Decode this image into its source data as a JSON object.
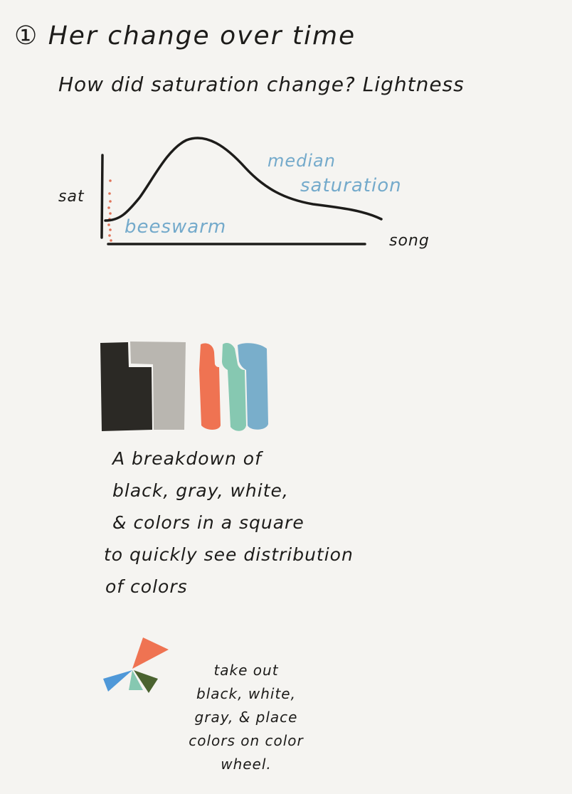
{
  "title": {
    "number_mark": "①",
    "text": "Her change over time"
  },
  "subtitle": "How did saturation change? Lightness",
  "sketch_chart": {
    "ylabel": "sat",
    "xlabel": "song",
    "median_label_line1": "median",
    "median_label_line2": "saturation",
    "beeswarm_label": "beeswarm"
  },
  "color_blocks": {
    "colors": [
      "#2b2925",
      "#b9b6b0",
      "#ef7352",
      "#86c8b1",
      "#79aecb"
    ],
    "caption_lines": [
      "A breakdown of",
      "black, gray, white,",
      "& colors in a square",
      "to quickly see distribution",
      "of colors"
    ]
  },
  "color_wheel": {
    "colors": [
      "#ef7352",
      "#4f98d8",
      "#86c8b1",
      "#4a6330"
    ],
    "caption_lines": [
      "take out",
      "black, white,",
      "gray, & place",
      "colors on color",
      "wheel."
    ]
  }
}
